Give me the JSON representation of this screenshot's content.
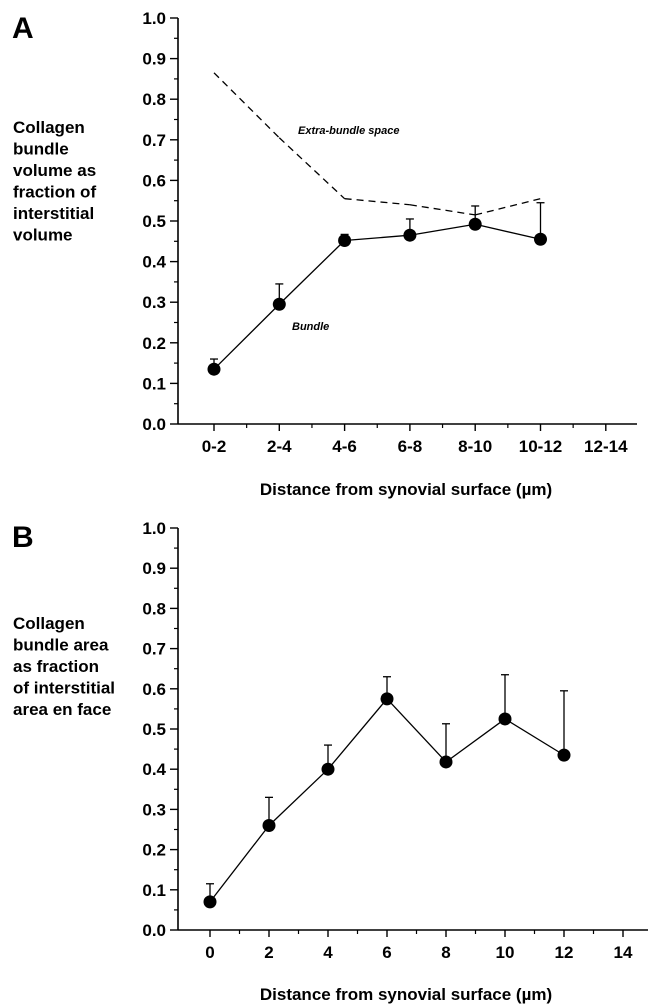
{
  "chart_data": [
    {
      "panel": "A",
      "type": "line",
      "categories": [
        "0-2",
        "2-4",
        "4-6",
        "6-8",
        "8-10",
        "10-12",
        "12-14"
      ],
      "ylim": [
        0.0,
        1.0
      ],
      "yticks": [
        "0.0",
        "0.1",
        "0.2",
        "0.3",
        "0.4",
        "0.5",
        "0.6",
        "0.7",
        "0.8",
        "0.9",
        "1.0"
      ],
      "xlabel": "Distance from synovial surface (µm)",
      "ylabel": [
        "Collagen",
        "bundle",
        "volume as",
        "fraction of",
        "interstitial",
        "volume"
      ],
      "grid": false,
      "series": [
        {
          "name": "Bundle",
          "style": "solid-with-markers",
          "values": [
            0.135,
            0.295,
            0.452,
            0.465,
            0.492,
            0.455,
            null
          ],
          "error_upper": [
            0.025,
            0.05,
            0.015,
            0.04,
            0.045,
            0.09,
            null
          ]
        },
        {
          "name": "Extra-bundle space",
          "style": "dashed",
          "values": [
            0.865,
            0.705,
            0.555,
            0.54,
            0.515,
            0.555,
            null
          ]
        }
      ]
    },
    {
      "panel": "B",
      "type": "line",
      "x": [
        0,
        2,
        4,
        6,
        8,
        10,
        12
      ],
      "xticks": [
        "0",
        "2",
        "4",
        "6",
        "8",
        "10",
        "12",
        "14"
      ],
      "xlim": [
        0,
        14
      ],
      "ylim": [
        0.0,
        1.0
      ],
      "yticks": [
        "0.0",
        "0.1",
        "0.2",
        "0.3",
        "0.4",
        "0.5",
        "0.6",
        "0.7",
        "0.8",
        "0.9",
        "1.0"
      ],
      "xlabel": "Distance from synovial surface (µm)",
      "ylabel": [
        "Collagen",
        "bundle area",
        "as fraction",
        "of interstitial",
        "area en face"
      ],
      "grid": false,
      "series": [
        {
          "style": "solid-with-markers",
          "values": [
            0.07,
            0.26,
            0.4,
            0.575,
            0.418,
            0.525,
            0.435
          ],
          "error_upper": [
            0.045,
            0.07,
            0.06,
            0.055,
            0.095,
            0.11,
            0.16
          ]
        }
      ]
    }
  ]
}
